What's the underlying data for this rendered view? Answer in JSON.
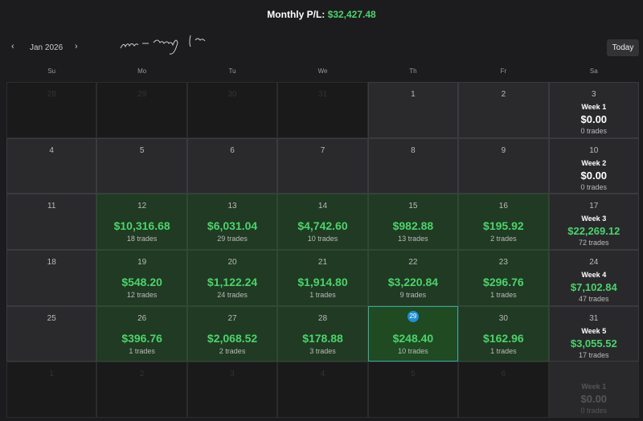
{
  "header": {
    "title_label": "Monthly P/L:",
    "total": "$32,427.48"
  },
  "nav": {
    "prev": "‹",
    "month": "Jan 2026",
    "next": "›",
    "today": "Today"
  },
  "weekdays": [
    "Su",
    "Mo",
    "Tu",
    "We",
    "Th",
    "Fr",
    "Sa"
  ],
  "weeks": [
    {
      "days": [
        {
          "day": "28",
          "muted": true
        },
        {
          "day": "29",
          "muted": true
        },
        {
          "day": "30",
          "muted": true
        },
        {
          "day": "31",
          "muted": true
        },
        {
          "day": "1"
        },
        {
          "day": "2"
        },
        {
          "day": "3"
        }
      ],
      "summary": {
        "label": "Week 1",
        "pnl": "$0.00",
        "trades": "0 trades"
      }
    },
    {
      "days": [
        {
          "day": "4"
        },
        {
          "day": "5"
        },
        {
          "day": "6"
        },
        {
          "day": "7"
        },
        {
          "day": "8"
        },
        {
          "day": "9"
        },
        {
          "day": "10"
        }
      ],
      "summary": {
        "label": "Week 2",
        "pnl": "$0.00",
        "trades": "0 trades"
      }
    },
    {
      "days": [
        {
          "day": "11"
        },
        {
          "day": "12",
          "pnl": "$10,316.68",
          "trades": "18 trades"
        },
        {
          "day": "13",
          "pnl": "$6,031.04",
          "trades": "29 trades"
        },
        {
          "day": "14",
          "pnl": "$4,742.60",
          "trades": "10 trades"
        },
        {
          "day": "15",
          "pnl": "$982.88",
          "trades": "13 trades"
        },
        {
          "day": "16",
          "pnl": "$195.92",
          "trades": "2 trades"
        },
        {
          "day": "17"
        }
      ],
      "summary": {
        "label": "Week 3",
        "pnl": "$22,269.12",
        "trades": "72 trades",
        "positive": true
      }
    },
    {
      "days": [
        {
          "day": "18"
        },
        {
          "day": "19",
          "pnl": "$548.20",
          "trades": "12 trades"
        },
        {
          "day": "20",
          "pnl": "$1,122.24",
          "trades": "24 trades"
        },
        {
          "day": "21",
          "pnl": "$1,914.80",
          "trades": "1 trades"
        },
        {
          "day": "22",
          "pnl": "$3,220.84",
          "trades": "9 trades"
        },
        {
          "day": "23",
          "pnl": "$296.76",
          "trades": "1 trades"
        },
        {
          "day": "24"
        }
      ],
      "summary": {
        "label": "Week 4",
        "pnl": "$7,102.84",
        "trades": "47 trades",
        "positive": true
      }
    },
    {
      "days": [
        {
          "day": "25"
        },
        {
          "day": "26",
          "pnl": "$396.76",
          "trades": "1 trades"
        },
        {
          "day": "27",
          "pnl": "$2,068.52",
          "trades": "2 trades"
        },
        {
          "day": "28",
          "pnl": "$178.88",
          "trades": "3 trades"
        },
        {
          "day": "29",
          "pnl": "$248.40",
          "trades": "10 trades",
          "today": true
        },
        {
          "day": "30",
          "pnl": "$162.96",
          "trades": "1 trades"
        },
        {
          "day": "31"
        }
      ],
      "summary": {
        "label": "Week 5",
        "pnl": "$3,055.52",
        "trades": "17 trades",
        "positive": true
      }
    },
    {
      "days": [
        {
          "day": "1",
          "muted": true
        },
        {
          "day": "2",
          "muted": true
        },
        {
          "day": "3",
          "muted": true
        },
        {
          "day": "4",
          "muted": true
        },
        {
          "day": "5",
          "muted": true
        },
        {
          "day": "6",
          "muted": true
        },
        {
          "muted": true
        }
      ],
      "summary": {
        "label": "Week 1",
        "pnl": "$0.00",
        "trades": "0 trades",
        "muted": true
      }
    }
  ]
}
